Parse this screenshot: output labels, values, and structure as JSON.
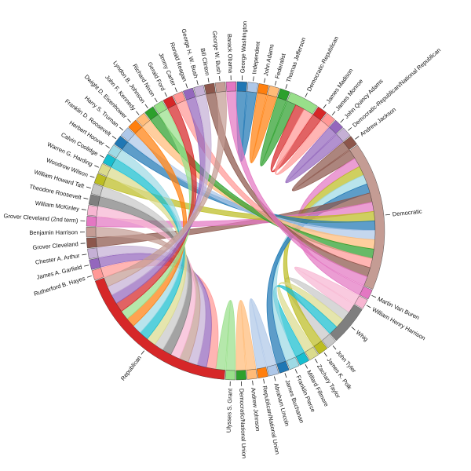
{
  "diagram": {
    "type": "chord",
    "nodes": [
      {
        "name": "George Washington",
        "kind": "president",
        "color": "#1f77b4"
      },
      {
        "name": "Independent",
        "kind": "party",
        "color": "#aec7e8"
      },
      {
        "name": "John Adams",
        "kind": "president",
        "color": "#ff7f0e"
      },
      {
        "name": "Federalist",
        "kind": "party",
        "color": "#ffbb78"
      },
      {
        "name": "Thomas Jefferson",
        "kind": "president",
        "color": "#2ca02c"
      },
      {
        "name": "Democratic-Republican",
        "kind": "party",
        "color": "#98df8a"
      },
      {
        "name": "James Madison",
        "kind": "president",
        "color": "#d62728"
      },
      {
        "name": "James Monroe",
        "kind": "president",
        "color": "#ff9896"
      },
      {
        "name": "John Quincy Adams",
        "kind": "president",
        "color": "#9467bd"
      },
      {
        "name": "Democratic-Republican/National Republican",
        "kind": "party",
        "color": "#c5b0d5"
      },
      {
        "name": "Andrew Jackson",
        "kind": "president",
        "color": "#8c564b"
      },
      {
        "name": "Democratic",
        "kind": "party",
        "color": "#c49c94"
      },
      {
        "name": "Martin Van Buren",
        "kind": "president",
        "color": "#e377c2"
      },
      {
        "name": "William Henry Harrison",
        "kind": "president",
        "color": "#f7b6d2"
      },
      {
        "name": "Whig",
        "kind": "party",
        "color": "#7f7f7f"
      },
      {
        "name": "John Tyler",
        "kind": "president",
        "color": "#c7c7c7"
      },
      {
        "name": "James K. Polk",
        "kind": "president",
        "color": "#bcbd22"
      },
      {
        "name": "Zachary Taylor",
        "kind": "president",
        "color": "#dbdb8d"
      },
      {
        "name": "Millard Fillmore",
        "kind": "president",
        "color": "#17becf"
      },
      {
        "name": "Franklin Pierce",
        "kind": "president",
        "color": "#9edae5"
      },
      {
        "name": "James Buchanan",
        "kind": "president",
        "color": "#1f77b4"
      },
      {
        "name": "Abraham Lincoln",
        "kind": "president",
        "color": "#aec7e8"
      },
      {
        "name": "Republican/National Union",
        "kind": "party",
        "color": "#ff7f0e"
      },
      {
        "name": "Andrew Johnson",
        "kind": "president",
        "color": "#ffbb78"
      },
      {
        "name": "Democratic/National Union",
        "kind": "party",
        "color": "#2ca02c"
      },
      {
        "name": "Ulysses S. Grant",
        "kind": "president",
        "color": "#98df8a"
      },
      {
        "name": "Republican",
        "kind": "party",
        "color": "#d62728"
      },
      {
        "name": "Rutherford B. Hayes",
        "kind": "president",
        "color": "#ff9896"
      },
      {
        "name": "James A. Garfield",
        "kind": "president",
        "color": "#9467bd"
      },
      {
        "name": "Chester A. Arthur",
        "kind": "president",
        "color": "#c5b0d5"
      },
      {
        "name": "Grover Cleveland",
        "kind": "president",
        "color": "#8c564b"
      },
      {
        "name": "Benjamin Harrison",
        "kind": "president",
        "color": "#c49c94"
      },
      {
        "name": "Grover Cleveland (2nd term)",
        "kind": "president",
        "color": "#e377c2"
      },
      {
        "name": "William McKinley",
        "kind": "president",
        "color": "#f7b6d2"
      },
      {
        "name": "Theodore Roosevelt",
        "kind": "president",
        "color": "#7f7f7f"
      },
      {
        "name": "William Howard Taft",
        "kind": "president",
        "color": "#c7c7c7"
      },
      {
        "name": "Woodrow Wilson",
        "kind": "president",
        "color": "#bcbd22"
      },
      {
        "name": "Warren G. Harding",
        "kind": "president",
        "color": "#dbdb8d"
      },
      {
        "name": "Calvin Coolidge",
        "kind": "president",
        "color": "#17becf"
      },
      {
        "name": "Herbert Hoover",
        "kind": "president",
        "color": "#9edae5"
      },
      {
        "name": "Franklin D. Roosevelt",
        "kind": "president",
        "color": "#1f77b4"
      },
      {
        "name": "Harry S. Truman",
        "kind": "president",
        "color": "#aec7e8"
      },
      {
        "name": "Dwight D. Eisenhower",
        "kind": "president",
        "color": "#ff7f0e"
      },
      {
        "name": "John F. Kennedy",
        "kind": "president",
        "color": "#ffbb78"
      },
      {
        "name": "Lyndon B. Johnson",
        "kind": "president",
        "color": "#2ca02c"
      },
      {
        "name": "Richard Nixon",
        "kind": "president",
        "color": "#98df8a"
      },
      {
        "name": "Gerald Ford",
        "kind": "president",
        "color": "#d62728"
      },
      {
        "name": "Jimmy Carter",
        "kind": "president",
        "color": "#ff9896"
      },
      {
        "name": "Ronald Reagan",
        "kind": "president",
        "color": "#9467bd"
      },
      {
        "name": "George H. W. Bush",
        "kind": "president",
        "color": "#c5b0d5"
      },
      {
        "name": "Bill Clinton",
        "kind": "president",
        "color": "#8c564b"
      },
      {
        "name": "George W. Bush",
        "kind": "president",
        "color": "#c49c94"
      },
      {
        "name": "Barack Obama",
        "kind": "president",
        "color": "#e377c2"
      }
    ],
    "links": [
      [
        "George Washington",
        "Independent"
      ],
      [
        "John Adams",
        "Federalist"
      ],
      [
        "Thomas Jefferson",
        "Democratic-Republican"
      ],
      [
        "James Madison",
        "Democratic-Republican"
      ],
      [
        "James Monroe",
        "Democratic-Republican"
      ],
      [
        "John Quincy Adams",
        "Democratic-Republican/National Republican"
      ],
      [
        "Andrew Jackson",
        "Democratic"
      ],
      [
        "Martin Van Buren",
        "Democratic"
      ],
      [
        "William Henry Harrison",
        "Whig"
      ],
      [
        "John Tyler",
        "Whig"
      ],
      [
        "James K. Polk",
        "Democratic"
      ],
      [
        "Zachary Taylor",
        "Whig"
      ],
      [
        "Millard Fillmore",
        "Whig"
      ],
      [
        "Franklin Pierce",
        "Democratic"
      ],
      [
        "James Buchanan",
        "Democratic"
      ],
      [
        "Abraham Lincoln",
        "Republican/National Union"
      ],
      [
        "Andrew Johnson",
        "Democratic/National Union"
      ],
      [
        "Ulysses S. Grant",
        "Republican"
      ],
      [
        "Rutherford B. Hayes",
        "Republican"
      ],
      [
        "James A. Garfield",
        "Republican"
      ],
      [
        "Chester A. Arthur",
        "Republican"
      ],
      [
        "Grover Cleveland",
        "Democratic"
      ],
      [
        "Benjamin Harrison",
        "Republican"
      ],
      [
        "Grover Cleveland (2nd term)",
        "Democratic"
      ],
      [
        "William McKinley",
        "Republican"
      ],
      [
        "Theodore Roosevelt",
        "Republican"
      ],
      [
        "William Howard Taft",
        "Republican"
      ],
      [
        "Woodrow Wilson",
        "Democratic"
      ],
      [
        "Warren G. Harding",
        "Republican"
      ],
      [
        "Calvin Coolidge",
        "Republican"
      ],
      [
        "Herbert Hoover",
        "Republican"
      ],
      [
        "Franklin D. Roosevelt",
        "Democratic"
      ],
      [
        "Harry S. Truman",
        "Democratic"
      ],
      [
        "Dwight D. Eisenhower",
        "Republican"
      ],
      [
        "John F. Kennedy",
        "Democratic"
      ],
      [
        "Lyndon B. Johnson",
        "Democratic"
      ],
      [
        "Richard Nixon",
        "Republican"
      ],
      [
        "Gerald Ford",
        "Republican"
      ],
      [
        "Jimmy Carter",
        "Democratic"
      ],
      [
        "Ronald Reagan",
        "Republican"
      ],
      [
        "George H. W. Bush",
        "Republican"
      ],
      [
        "Bill Clinton",
        "Democratic"
      ],
      [
        "George W. Bush",
        "Republican"
      ],
      [
        "Barack Obama",
        "Democratic"
      ]
    ]
  }
}
